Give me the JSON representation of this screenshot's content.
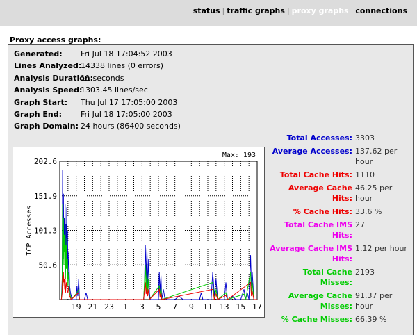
{
  "nav": {
    "items": [
      {
        "label": "status"
      },
      {
        "label": "traffic graphs"
      },
      {
        "label": "proxy graphs"
      },
      {
        "label": "connections"
      }
    ],
    "separator": "|"
  },
  "page": {
    "section_title": "Proxy access graphs:"
  },
  "info": [
    {
      "label": "Generated:",
      "value": "Fri Jul 18 17:04:52 2003"
    },
    {
      "label": "Lines Analyzed:",
      "value": "14338 lines (0 errors)"
    },
    {
      "label": "Analysis Duration:",
      "value": "11 seconds"
    },
    {
      "label": "Analysis Speed:",
      "value": "1303.45 lines/sec"
    },
    {
      "label": "Graph Start:",
      "value": "Thu Jul 17 17:05:00 2003"
    },
    {
      "label": "Graph End:",
      "value": "Fri Jul 18 17:05:00 2003"
    },
    {
      "label": "Graph Domain:",
      "value": "24 hours (86400 seconds)"
    }
  ],
  "stats": [
    {
      "label": "Total Accesses:",
      "value": "3303",
      "color": "#0000cc"
    },
    {
      "label": "Average Accesses:",
      "value": "137.62 per hour",
      "color": "#0000cc"
    },
    {
      "label": "Total Cache Hits:",
      "value": "1110",
      "color": "#ee0000"
    },
    {
      "label": "Average Cache Hits:",
      "value": "46.25 per hour",
      "color": "#ee0000"
    },
    {
      "label": "% Cache Hits:",
      "value": "33.6 %",
      "color": "#ee0000"
    },
    {
      "label": "Total Cache IMS Hits:",
      "value": "27",
      "color": "#ee00ee"
    },
    {
      "label": "Average Cache IMS Hits:",
      "value": "1.12 per hour",
      "color": "#ee00ee"
    },
    {
      "label": "Total Cache Misses:",
      "value": "2193",
      "color": "#00cc00"
    },
    {
      "label": "Average Cache Misses:",
      "value": "91.37 per hour",
      "color": "#00cc00"
    },
    {
      "label": "% Cache Misses:",
      "value": "66.39 %",
      "color": "#00cc00"
    }
  ],
  "chart_data": {
    "type": "line",
    "ylabel": "TCP Accesses",
    "max_label": "Max: 193",
    "ylim": [
      0,
      202.6
    ],
    "yticks": [
      "202.6",
      "151.9",
      "101.3",
      "50.6"
    ],
    "ytick_values": [
      202.6,
      151.9,
      101.3,
      50.6
    ],
    "xtick_labels": [
      "19",
      "21",
      "23",
      "1",
      "3",
      "5",
      "7",
      "9",
      "11",
      "13",
      "15",
      "17"
    ],
    "x_hours_start": 17,
    "x_hours_span": 24,
    "grid": true,
    "series": [
      {
        "color": "#0000cc",
        "points": [
          [
            0.2,
            0
          ],
          [
            0.3,
            30
          ],
          [
            0.35,
            190
          ],
          [
            0.4,
            80
          ],
          [
            0.45,
            155
          ],
          [
            0.5,
            60
          ],
          [
            0.55,
            120
          ],
          [
            0.6,
            90
          ],
          [
            0.65,
            140
          ],
          [
            0.7,
            40
          ],
          [
            0.75,
            110
          ],
          [
            0.8,
            70
          ],
          [
            0.85,
            135
          ],
          [
            0.9,
            50
          ],
          [
            0.95,
            100
          ],
          [
            1.0,
            30
          ],
          [
            1.1,
            70
          ],
          [
            1.2,
            20
          ],
          [
            1.3,
            10
          ],
          [
            1.5,
            0
          ],
          [
            2.0,
            0
          ],
          [
            2.1,
            20
          ],
          [
            2.2,
            5
          ],
          [
            2.3,
            30
          ],
          [
            2.4,
            0
          ],
          [
            3.0,
            0
          ],
          [
            3.2,
            10
          ],
          [
            3.4,
            0
          ],
          [
            4.0,
            0
          ],
          [
            10.2,
            0
          ],
          [
            10.3,
            20
          ],
          [
            10.4,
            80
          ],
          [
            10.5,
            30
          ],
          [
            10.6,
            75
          ],
          [
            10.7,
            20
          ],
          [
            10.8,
            60
          ],
          [
            10.9,
            10
          ],
          [
            11.0,
            0
          ],
          [
            11.5,
            0
          ],
          [
            12.0,
            0
          ],
          [
            12.1,
            40
          ],
          [
            12.2,
            10
          ],
          [
            12.3,
            35
          ],
          [
            12.4,
            0
          ],
          [
            12.6,
            15
          ],
          [
            12.8,
            0
          ],
          [
            13.2,
            0
          ],
          [
            14.0,
            0
          ],
          [
            14.5,
            5
          ],
          [
            15.0,
            0
          ],
          [
            15.5,
            0
          ],
          [
            16.0,
            0
          ],
          [
            16.5,
            0
          ],
          [
            17.0,
            0
          ],
          [
            17.2,
            10
          ],
          [
            17.4,
            0
          ],
          [
            18.4,
            0
          ],
          [
            18.6,
            40
          ],
          [
            18.8,
            5
          ],
          [
            19.0,
            30
          ],
          [
            19.2,
            0
          ],
          [
            19.6,
            0
          ],
          [
            20.0,
            0
          ],
          [
            20.2,
            25
          ],
          [
            20.4,
            0
          ],
          [
            20.8,
            0
          ],
          [
            21.0,
            5
          ],
          [
            21.4,
            0
          ],
          [
            22.0,
            0
          ],
          [
            22.4,
            15
          ],
          [
            22.6,
            0
          ],
          [
            22.8,
            10
          ],
          [
            23.0,
            0
          ],
          [
            23.2,
            65
          ],
          [
            23.3,
            20
          ],
          [
            23.4,
            40
          ],
          [
            23.6,
            0
          ],
          [
            24.0,
            0
          ]
        ]
      },
      {
        "color": "#00cc00",
        "points": [
          [
            0.2,
            0
          ],
          [
            0.3,
            20
          ],
          [
            0.35,
            140
          ],
          [
            0.4,
            60
          ],
          [
            0.45,
            120
          ],
          [
            0.5,
            50
          ],
          [
            0.55,
            95
          ],
          [
            0.6,
            70
          ],
          [
            0.65,
            110
          ],
          [
            0.7,
            30
          ],
          [
            0.75,
            80
          ],
          [
            0.8,
            45
          ],
          [
            0.85,
            90
          ],
          [
            0.9,
            30
          ],
          [
            0.95,
            60
          ],
          [
            1.0,
            20
          ],
          [
            1.1,
            40
          ],
          [
            1.2,
            10
          ],
          [
            1.4,
            0
          ],
          [
            2.1,
            10
          ],
          [
            2.3,
            15
          ],
          [
            2.4,
            0
          ],
          [
            10.2,
            0
          ],
          [
            10.4,
            50
          ],
          [
            10.5,
            15
          ],
          [
            10.6,
            45
          ],
          [
            10.7,
            10
          ],
          [
            10.8,
            30
          ],
          [
            10.9,
            0
          ],
          [
            12.1,
            20
          ],
          [
            12.2,
            5
          ],
          [
            12.3,
            18
          ],
          [
            12.4,
            0
          ],
          [
            18.6,
            25
          ],
          [
            18.8,
            0
          ],
          [
            19.0,
            15
          ],
          [
            19.2,
            0
          ],
          [
            20.2,
            10
          ],
          [
            20.4,
            0
          ],
          [
            22.4,
            8
          ],
          [
            22.6,
            0
          ],
          [
            23.2,
            40
          ],
          [
            23.3,
            10
          ],
          [
            23.4,
            25
          ],
          [
            23.6,
            0
          ],
          [
            24.0,
            0
          ]
        ]
      },
      {
        "color": "#ee0000",
        "points": [
          [
            0.2,
            0
          ],
          [
            0.3,
            10
          ],
          [
            0.35,
            35
          ],
          [
            0.4,
            20
          ],
          [
            0.45,
            40
          ],
          [
            0.5,
            25
          ],
          [
            0.55,
            30
          ],
          [
            0.6,
            15
          ],
          [
            0.65,
            35
          ],
          [
            0.7,
            10
          ],
          [
            0.8,
            25
          ],
          [
            0.9,
            15
          ],
          [
            1.0,
            10
          ],
          [
            1.1,
            20
          ],
          [
            1.2,
            5
          ],
          [
            1.4,
            0
          ],
          [
            2.1,
            8
          ],
          [
            2.3,
            10
          ],
          [
            2.4,
            0
          ],
          [
            10.2,
            0
          ],
          [
            10.4,
            25
          ],
          [
            10.5,
            8
          ],
          [
            10.6,
            20
          ],
          [
            10.7,
            5
          ],
          [
            10.8,
            15
          ],
          [
            10.9,
            0
          ],
          [
            12.1,
            15
          ],
          [
            12.2,
            3
          ],
          [
            12.3,
            10
          ],
          [
            12.4,
            0
          ],
          [
            18.6,
            15
          ],
          [
            18.8,
            0
          ],
          [
            19.0,
            8
          ],
          [
            19.2,
            0
          ],
          [
            20.2,
            6
          ],
          [
            20.4,
            0
          ],
          [
            23.2,
            25
          ],
          [
            23.3,
            5
          ],
          [
            23.4,
            12
          ],
          [
            23.6,
            0
          ],
          [
            24.0,
            0
          ]
        ]
      }
    ]
  }
}
